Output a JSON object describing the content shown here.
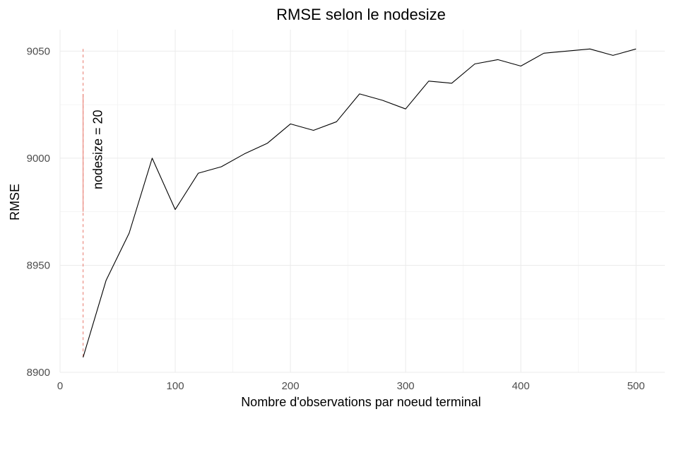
{
  "chart_data": {
    "type": "line",
    "title": "RMSE selon le nodesize",
    "xlabel": "Nombre d'observations par noeud terminal",
    "ylabel": "RMSE",
    "xlim": [
      0,
      525
    ],
    "ylim": [
      8900,
      9060
    ],
    "xticks": [
      0,
      100,
      200,
      300,
      400,
      500
    ],
    "yticks": [
      8900,
      8950,
      9000,
      9050
    ],
    "grid": true,
    "series": [
      {
        "x": [
          20,
          40,
          60,
          80,
          100,
          120,
          140,
          160,
          180,
          200,
          220,
          240,
          260,
          280,
          300,
          320,
          340,
          360,
          380,
          400,
          420,
          440,
          460,
          480,
          500
        ],
        "values": [
          8907,
          8943,
          8965,
          9000,
          8976,
          8993,
          8996,
          9002,
          9007,
          9016,
          9013,
          9017,
          9030,
          9027,
          9023,
          9036,
          9035,
          9044,
          9046,
          9043,
          9049,
          9050,
          9051,
          9048,
          9051
        ],
        "color": "#000000"
      }
    ],
    "annotation": {
      "vline_x": 20,
      "color": "#e8776b",
      "label": "nodesize = 20"
    }
  }
}
